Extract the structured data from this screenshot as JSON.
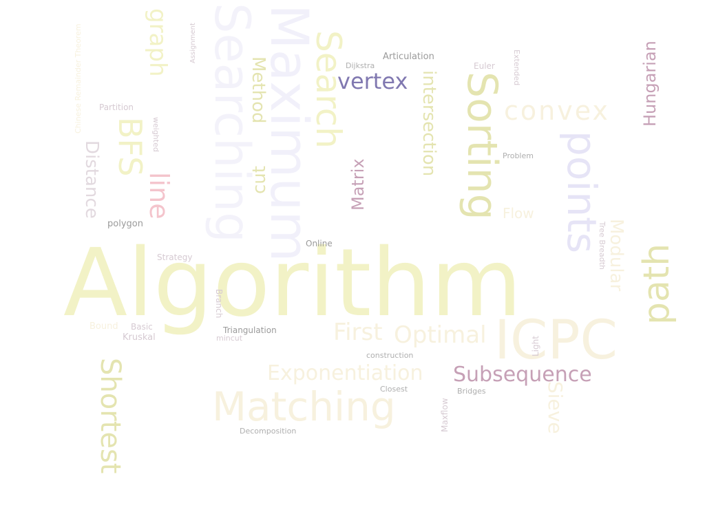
{
  "cloud": {
    "colors": {
      "yellow": "#f2f2c6",
      "olive": "#e4e4b0",
      "cream": "#f7f1de",
      "pink": "#f4c4cc",
      "lavender": "#e6e4f6",
      "violet": "#8078b0",
      "plum": "#c6a0b6",
      "grey": "#9a9a9a",
      "muted": "#d6cad2"
    },
    "words": {
      "algorithm": "Algorithm",
      "icpc": "ICPC",
      "maximum": "Maximum",
      "searching": "Searching",
      "search": "Search",
      "sorting": "Sorting",
      "points": "points",
      "path": "path",
      "matching": "Matching",
      "shortest": "Shortest",
      "graph": "graph",
      "bfs": "BFS",
      "line": "line",
      "distance": "Distance",
      "cut": "cut",
      "method": "Method",
      "intersection": "intersection",
      "matrix": "Matrix",
      "vertex": "vertex",
      "convex": "convex",
      "hungarian": "Hungarian",
      "modular": "Modular",
      "subsequence": "Subsequence",
      "exponentiation": "Exponentiation",
      "optimal": "Optimal",
      "first": "First",
      "sieve": "Sieve",
      "articulation": "Articulation",
      "dijkstra": "Dijkstra",
      "euler": "Euler",
      "partition": "Partition",
      "polygon": "polygon",
      "online": "Online",
      "strategy": "Strategy",
      "triangulation": "Triangulation",
      "kruskal": "Kruskal",
      "basic": "Basic",
      "bound": "Bound",
      "construction": "construction",
      "closest": "Closest",
      "bridges": "Bridges",
      "decomposition": "Decomposition",
      "problem": "Problem",
      "flow": "Flow",
      "branch": "Branch",
      "weighted": "weighted",
      "tree_breadth": "Tree Breadth",
      "maxflow": "Maxflow",
      "light": "Light",
      "theorem": "Chinese Remainder Theorem",
      "assignment": "Assignment",
      "extended": "Extended",
      "mincut": "mincut"
    }
  }
}
